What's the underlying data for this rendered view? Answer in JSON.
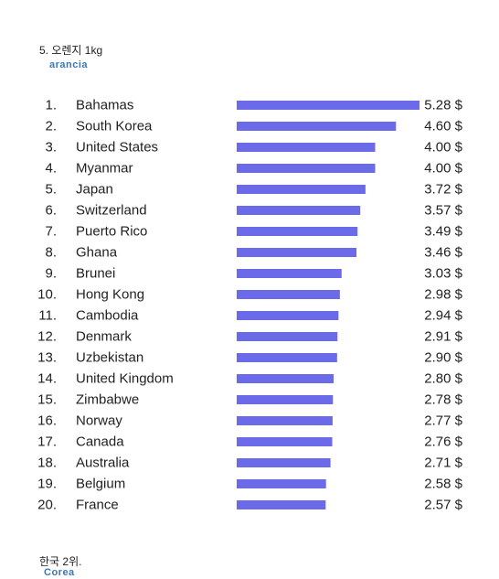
{
  "header": {
    "title": "5. 오렌지 1kg",
    "subtitle": "arancia"
  },
  "footer": {
    "note": "한국 2위.",
    "sub": "Corea"
  },
  "colors": {
    "bar": "#6b6bea",
    "text": "#222222",
    "accent": "#3a78b8"
  },
  "chart_data": {
    "type": "bar",
    "orientation": "horizontal",
    "ranks": [
      "1.",
      "2.",
      "3.",
      "4.",
      "5.",
      "6.",
      "7.",
      "8.",
      "9.",
      "10.",
      "11.",
      "12.",
      "13.",
      "14.",
      "15.",
      "16.",
      "17.",
      "18.",
      "19.",
      "20."
    ],
    "categories": [
      "Bahamas",
      "South Korea",
      "United States",
      "Myanmar",
      "Japan",
      "Switzerland",
      "Puerto Rico",
      "Ghana",
      "Brunei",
      "Hong Kong",
      "Cambodia",
      "Denmark",
      "Uzbekistan",
      "United Kingdom",
      "Zimbabwe",
      "Norway",
      "Canada",
      "Australia",
      "Belgium",
      "France"
    ],
    "values": [
      5.28,
      4.6,
      4.0,
      4.0,
      3.72,
      3.57,
      3.49,
      3.46,
      3.03,
      2.98,
      2.94,
      2.91,
      2.9,
      2.8,
      2.78,
      2.77,
      2.76,
      2.71,
      2.58,
      2.57
    ],
    "value_labels": [
      "5.28 $",
      "4.60 $",
      "4.00 $",
      "4.00 $",
      "3.72 $",
      "3.57 $",
      "3.49 $",
      "3.46 $",
      "3.03 $",
      "2.98 $",
      "2.94 $",
      "2.91 $",
      "2.90 $",
      "2.80 $",
      "2.78 $",
      "2.77 $",
      "2.76 $",
      "2.71 $",
      "2.58 $",
      "2.57 $"
    ],
    "grid": false,
    "legend": "none"
  }
}
